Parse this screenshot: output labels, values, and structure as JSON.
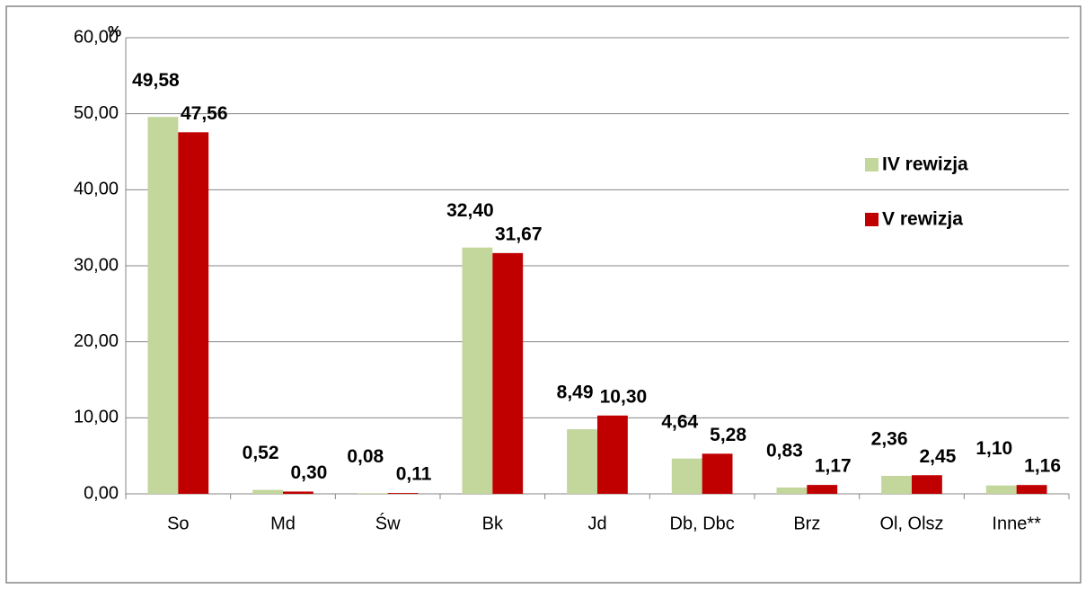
{
  "chart_data": {
    "type": "bar",
    "ylabel": "%",
    "categories": [
      "So",
      "Md",
      "Św",
      "Bk",
      "Jd",
      "Db, Dbc",
      "Brz",
      "Ol, Olsz",
      "Inne**"
    ],
    "series": [
      {
        "name": "IV rewizja",
        "color": "#c3d69b",
        "label_color": "#77933c",
        "values": [
          49.58,
          0.52,
          0.08,
          32.4,
          8.49,
          4.64,
          0.83,
          2.36,
          1.1
        ],
        "value_labels": [
          "49,58",
          "0,52",
          "0,08",
          "32,40",
          "8,49",
          "4,64",
          "0,83",
          "2,36",
          "1,10"
        ]
      },
      {
        "name": "V rewizja",
        "color": "#c00000",
        "label_color": "#c00000",
        "values": [
          47.56,
          0.3,
          0.11,
          31.67,
          10.3,
          5.28,
          1.17,
          2.45,
          1.16
        ],
        "value_labels": [
          "47,56",
          "0,30",
          "0,11",
          "31,67",
          "10,30",
          "5,28",
          "1,17",
          "2,45",
          "1,16"
        ]
      }
    ],
    "ylim": [
      0,
      60
    ],
    "yticks": [
      {
        "value": 0,
        "label": "0,00"
      },
      {
        "value": 10,
        "label": "10,00"
      },
      {
        "value": 20,
        "label": "20,00"
      },
      {
        "value": 30,
        "label": "30,00"
      },
      {
        "value": 40,
        "label": "40,00"
      },
      {
        "value": 50,
        "label": "50,00"
      },
      {
        "value": 60,
        "label": "60,00"
      }
    ],
    "grid": true
  }
}
